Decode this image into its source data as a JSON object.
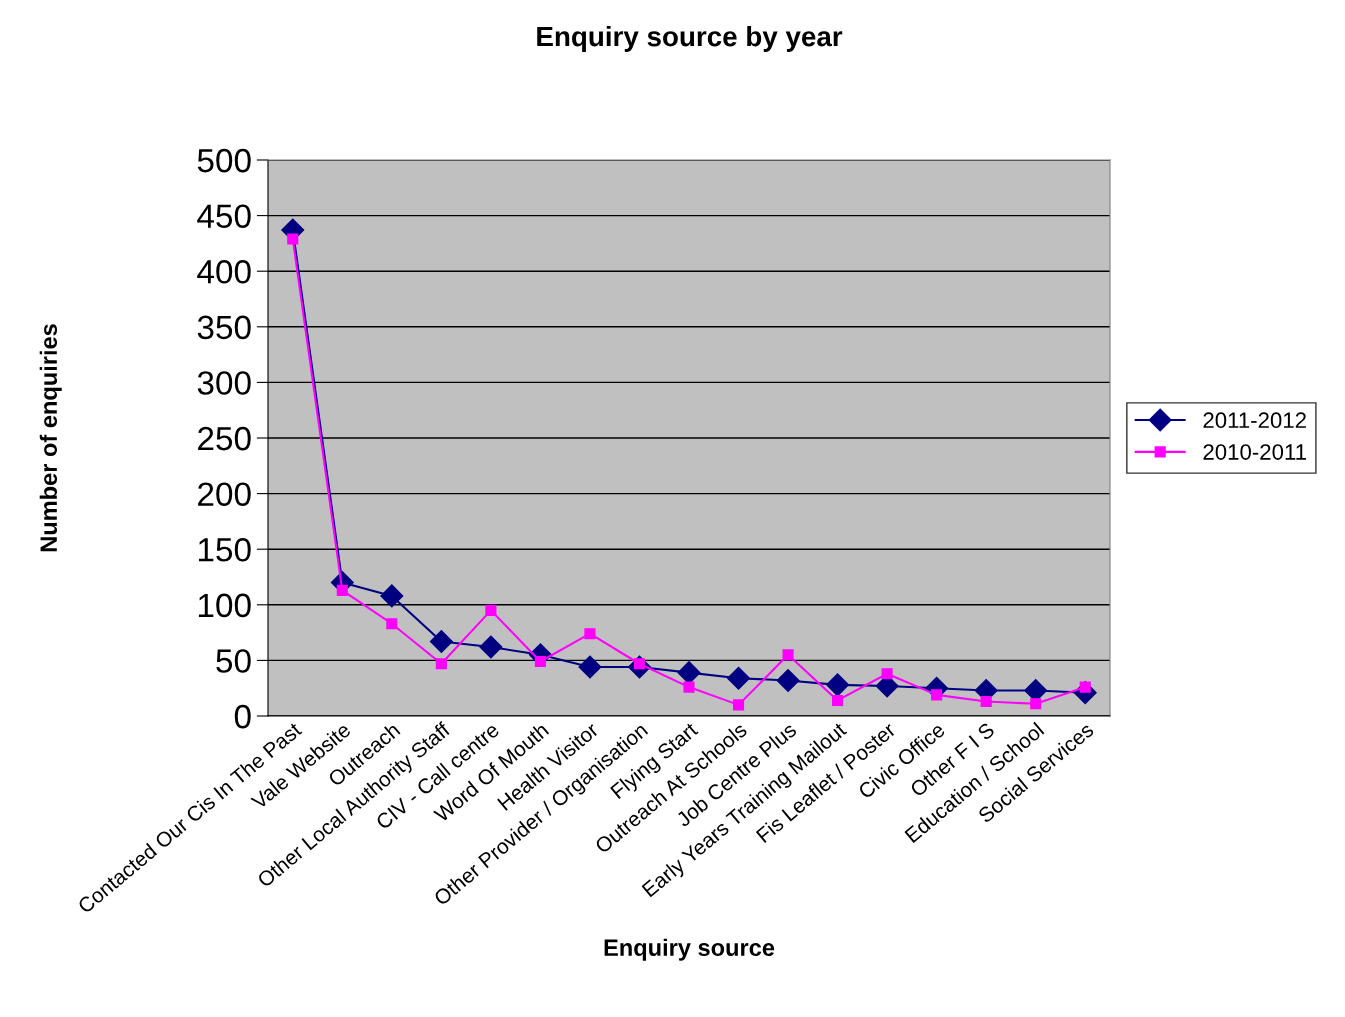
{
  "chart_data": {
    "type": "line",
    "title": "Enquiry source by year",
    "xlabel": "Enquiry source",
    "ylabel": "Number of enquiries",
    "categories": [
      "Contacted Our Cis In The Past",
      "Vale Website",
      "Outreach",
      "Other Local Authority Staff",
      "CIV - Call centre",
      "Word Of Mouth",
      "Health Visitor",
      "Other Provider / Organisation",
      "Flying Start",
      "Outreach At Schools",
      "Job Centre Plus",
      "Early Years Training Mailout",
      "Fis Leaflet / Poster",
      "Civic Office",
      "Other F I S",
      "Education / School",
      "Social Services"
    ],
    "series": [
      {
        "name": "2011-2012",
        "color": "#000080",
        "marker": "diamond",
        "values": [
          437,
          120,
          108,
          67,
          62,
          55,
          44,
          44,
          39,
          34,
          32,
          28,
          27,
          25,
          23,
          23,
          21
        ]
      },
      {
        "name": "2010-2011",
        "color": "#ff00ff",
        "marker": "square",
        "values": [
          429,
          113,
          83,
          47,
          95,
          49,
          74,
          47,
          26,
          10,
          55,
          14,
          38,
          19,
          13,
          11,
          26
        ]
      }
    ],
    "ylim": [
      0,
      500
    ],
    "yticks": [
      0,
      50,
      100,
      150,
      200,
      250,
      300,
      350,
      400,
      450,
      500
    ],
    "grid": "y",
    "legend": "right"
  }
}
